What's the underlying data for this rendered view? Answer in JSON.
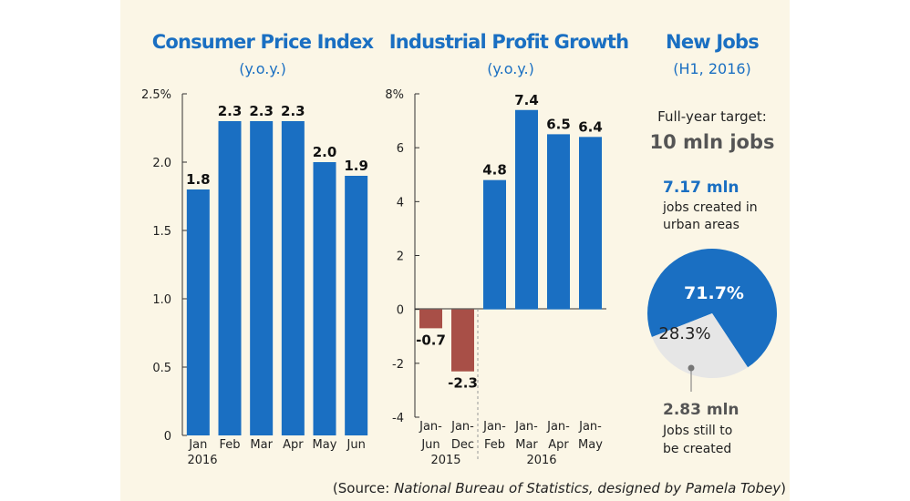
{
  "chart_data": [
    {
      "type": "bar",
      "title": "Consumer Price Index",
      "subtitle": "(y.o.y.)",
      "categories": [
        "Jan",
        "Feb",
        "Mar",
        "Apr",
        "May",
        "Jun"
      ],
      "group_label": "2016",
      "values": [
        1.8,
        2.3,
        2.3,
        2.3,
        2.0,
        1.9
      ],
      "value_labels": [
        "1.8",
        "2.3",
        "2.3",
        "2.3",
        "2.0",
        "1.9"
      ],
      "ylim": [
        0,
        2.5
      ],
      "yticks": [
        "0",
        "0.5",
        "1.0",
        "1.5",
        "2.0",
        "2.5%"
      ],
      "color": "#1a6fc2"
    },
    {
      "type": "bar",
      "title": "Industrial Profit Growth",
      "subtitle": "(y.o.y.)",
      "categories": [
        [
          "Jan-",
          "Jun"
        ],
        [
          "Jan-",
          "Dec"
        ],
        [
          "Jan-",
          "Feb"
        ],
        [
          "Jan-",
          "Mar"
        ],
        [
          "Jan-",
          "Apr"
        ],
        [
          "Jan-",
          "May"
        ]
      ],
      "groups": [
        {
          "label": "2015",
          "count": 2
        },
        {
          "label": "2016",
          "count": 4
        }
      ],
      "values": [
        -0.7,
        -2.3,
        4.8,
        7.4,
        6.5,
        6.4
      ],
      "value_labels": [
        "-0.7",
        "-2.3",
        "4.8",
        "7.4",
        "6.5",
        "6.4"
      ],
      "ylim": [
        -4,
        8
      ],
      "yticks": [
        "-4",
        "-2",
        "0",
        "2",
        "4",
        "6",
        "8%"
      ],
      "positive_color": "#1a6fc2",
      "negative_color": "#a84f47"
    },
    {
      "type": "pie",
      "title": "New Jobs",
      "subtitle": "(H1, 2016)",
      "target_label": "Full-year target:",
      "target_value": "10 mln jobs",
      "slices": [
        {
          "value": 71.7,
          "label": "71.7%",
          "color": "#1a6fc2"
        },
        {
          "value": 28.3,
          "label": "28.3%",
          "color": "#e6e6e6"
        }
      ],
      "created": {
        "amount": "7.17 mln",
        "line1": "jobs created in",
        "line2": "urban areas"
      },
      "remaining": {
        "amount": "2.83 mln",
        "line1": "Jobs still to",
        "line2": "be created"
      }
    }
  ],
  "source_prefix": "(Source: ",
  "source_italic": "National Bureau of Statistics, designed by Pamela Tobey",
  "source_suffix": ")"
}
